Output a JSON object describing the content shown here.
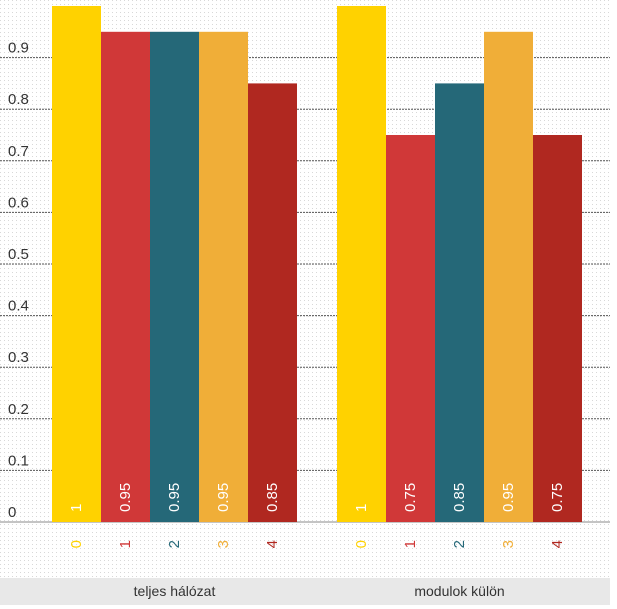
{
  "chart_data": {
    "type": "bar",
    "groups": [
      "teljes hálózat",
      "modulok külön"
    ],
    "categories": [
      "0",
      "1",
      "2",
      "3",
      "4"
    ],
    "series": [
      {
        "values": [
          1,
          0.95,
          0.95,
          0.95,
          0.85
        ],
        "labels": [
          "1",
          "0.95",
          "0.95",
          "0.95",
          "0.85"
        ]
      },
      {
        "values": [
          1,
          0.75,
          0.85,
          0.95,
          0.75
        ],
        "labels": [
          "1",
          "0.75",
          "0.85",
          "0.95",
          "0.75"
        ]
      }
    ],
    "yticks": [
      "0",
      "0.1",
      "0.2",
      "0.3",
      "0.4",
      "0.5",
      "0.6",
      "0.7",
      "0.8",
      "0.9"
    ],
    "ylim": [
      0,
      1
    ],
    "grid": true,
    "colors": [
      "#FFD200",
      "#D03838",
      "#256878",
      "#F0AE38",
      "#B02820"
    ]
  }
}
